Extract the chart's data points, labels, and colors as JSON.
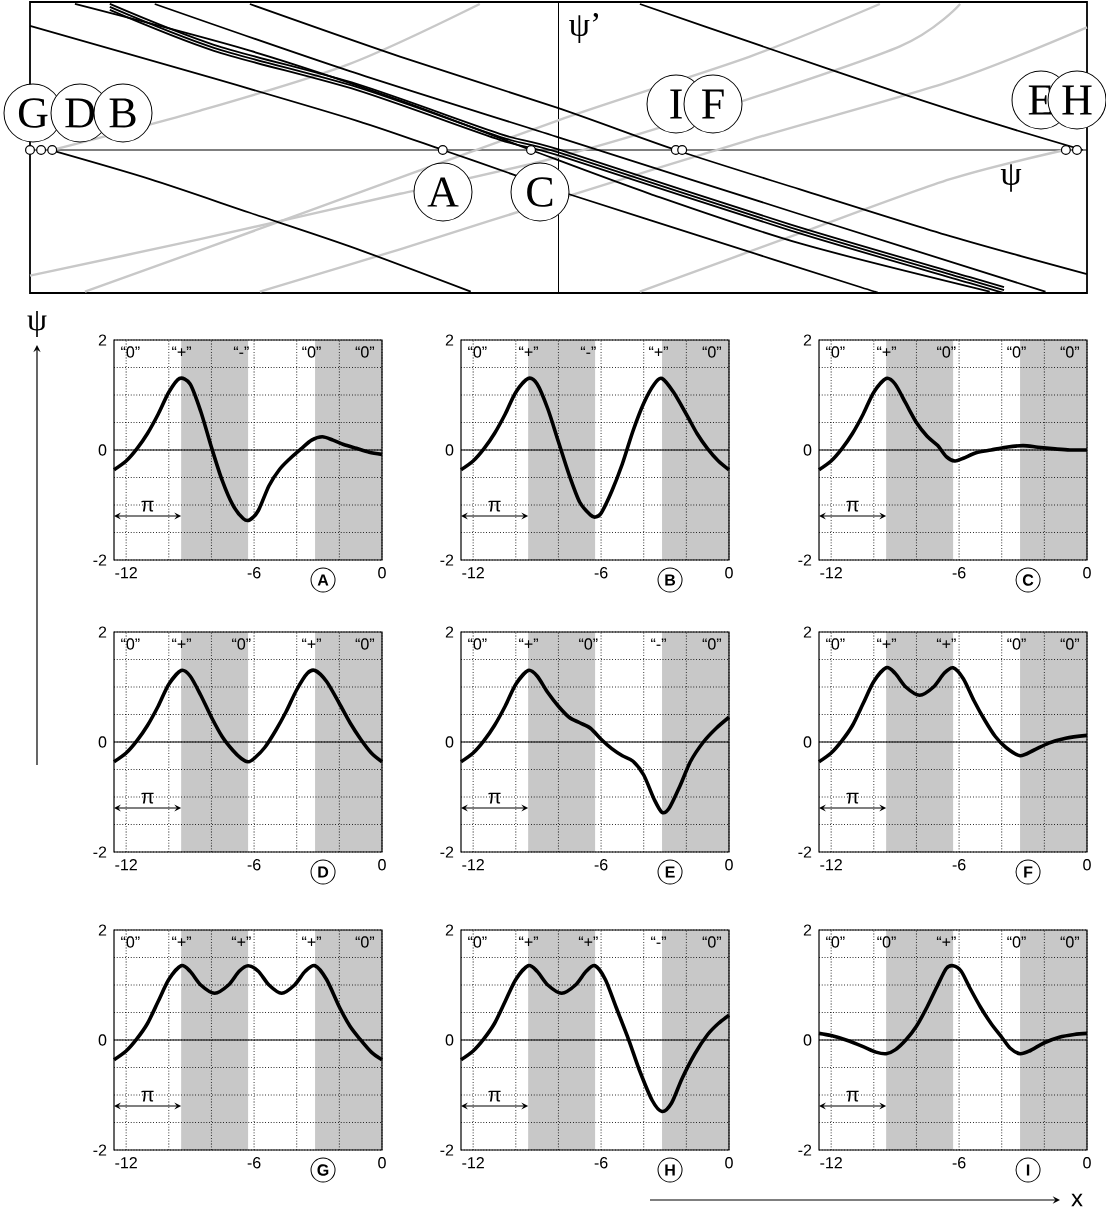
{
  "chart_data": [
    {
      "type": "other",
      "xlabel": "ψ",
      "ylabel": "ψ’",
      "annotations": [
        "G",
        "D",
        "B",
        "A",
        "C",
        "I",
        "F",
        "E",
        "H"
      ]
    },
    {
      "type": "line",
      "title": "A",
      "ylabel": "ψ",
      "xlim": [
        -12.57,
        0
      ],
      "ylim": [
        -2,
        2
      ],
      "grid": true,
      "xticks": [
        {
          "value": -12,
          "label": "-12"
        },
        {
          "value": -10,
          "label": null
        },
        {
          "value": -8,
          "label": null
        },
        {
          "value": -6,
          "label": "-6"
        },
        {
          "value": -4,
          "label": null
        },
        {
          "value": -2,
          "label": null
        },
        {
          "value": 0,
          "label": "0"
        }
      ],
      "yticks": [
        {
          "value": -2,
          "label": "-2"
        },
        {
          "value": -1.5,
          "label": null
        },
        {
          "value": -1,
          "label": null
        },
        {
          "value": -0.5,
          "label": null
        },
        {
          "value": 0,
          "label": "0"
        },
        {
          "value": 0.5,
          "label": null
        },
        {
          "value": 1,
          "label": null
        },
        {
          "value": 1.5,
          "label": null
        },
        {
          "value": 2,
          "label": "2"
        }
      ],
      "ref_lines": [
        {
          "axis": "y",
          "value": 0
        }
      ],
      "bands": [
        {
          "axis": "x",
          "from": -9.42,
          "to": -6.28,
          "color": "#c8c8c8"
        },
        {
          "axis": "x",
          "from": -3.14,
          "to": 0,
          "color": "#c8c8c8"
        }
      ],
      "color": "#000000",
      "x": [
        -12.57,
        -12,
        -11.5,
        -11,
        -10.5,
        -10,
        -9.5,
        -9,
        -8.5,
        -8,
        -7.5,
        -7,
        -6.5,
        -6.2,
        -5.8,
        -5.3,
        -4.8,
        -4.3,
        -3.8,
        -3.3,
        -2.8,
        -2.3,
        -1.8,
        -1.2,
        -0.6,
        0
      ],
      "values": [
        -0.36,
        -0.2,
        0.02,
        0.3,
        0.65,
        1.05,
        1.3,
        1.2,
        0.7,
        0.05,
        -0.55,
        -1.0,
        -1.25,
        -1.27,
        -1.1,
        -0.65,
        -0.35,
        -0.15,
        0.02,
        0.18,
        0.24,
        0.18,
        0.1,
        0.03,
        -0.04,
        -0.08
      ],
      "annotations": [
        "“0”",
        "“+”",
        "“-”",
        "“0”",
        "“0”",
        "π"
      ]
    },
    {
      "type": "line",
      "title": "B",
      "xlim": [
        -12.57,
        0
      ],
      "ylim": [
        -2,
        2
      ],
      "grid": true,
      "xticks": [
        {
          "value": -12,
          "label": "-12"
        },
        {
          "value": -10,
          "label": null
        },
        {
          "value": -8,
          "label": null
        },
        {
          "value": -6,
          "label": "-6"
        },
        {
          "value": -4,
          "label": null
        },
        {
          "value": -2,
          "label": null
        },
        {
          "value": 0,
          "label": "0"
        }
      ],
      "yticks": [
        {
          "value": -2,
          "label": "-2"
        },
        {
          "value": -1.5,
          "label": null
        },
        {
          "value": -1,
          "label": null
        },
        {
          "value": -0.5,
          "label": null
        },
        {
          "value": 0,
          "label": "0"
        },
        {
          "value": 0.5,
          "label": null
        },
        {
          "value": 1,
          "label": null
        },
        {
          "value": 1.5,
          "label": null
        },
        {
          "value": 2,
          "label": "2"
        }
      ],
      "ref_lines": [
        {
          "axis": "y",
          "value": 0
        }
      ],
      "bands": [
        {
          "axis": "x",
          "from": -9.42,
          "to": -6.28,
          "color": "#c8c8c8"
        },
        {
          "axis": "x",
          "from": -3.14,
          "to": 0,
          "color": "#c8c8c8"
        }
      ],
      "color": "#000000",
      "x": [
        -12.57,
        -12,
        -11.5,
        -11,
        -10.5,
        -10,
        -9.42,
        -9,
        -8.5,
        -8,
        -7.5,
        -7,
        -6.5,
        -6.28,
        -6,
        -5.5,
        -5,
        -4.5,
        -4,
        -3.5,
        -3.14,
        -2.6,
        -2,
        -1.5,
        -1,
        -0.5,
        0
      ],
      "values": [
        -0.36,
        -0.2,
        0.02,
        0.3,
        0.65,
        1.05,
        1.3,
        1.2,
        0.75,
        0.15,
        -0.45,
        -0.95,
        -1.18,
        -1.22,
        -1.15,
        -0.75,
        -0.25,
        0.35,
        0.85,
        1.2,
        1.3,
        1.05,
        0.65,
        0.3,
        0.02,
        -0.2,
        -0.36
      ],
      "annotations": [
        "“0”",
        "“+”",
        "“-”",
        "“+”",
        "“0”",
        "π"
      ]
    },
    {
      "type": "line",
      "title": "C",
      "xlim": [
        -12.57,
        0
      ],
      "ylim": [
        -2,
        2
      ],
      "grid": true,
      "xticks": [
        {
          "value": -12,
          "label": "-12"
        },
        {
          "value": -10,
          "label": null
        },
        {
          "value": -8,
          "label": null
        },
        {
          "value": -6,
          "label": "-6"
        },
        {
          "value": -4,
          "label": null
        },
        {
          "value": -2,
          "label": null
        },
        {
          "value": 0,
          "label": "0"
        }
      ],
      "yticks": [
        {
          "value": -2,
          "label": "-2"
        },
        {
          "value": -1.5,
          "label": null
        },
        {
          "value": -1,
          "label": null
        },
        {
          "value": -0.5,
          "label": null
        },
        {
          "value": 0,
          "label": "0"
        },
        {
          "value": 0.5,
          "label": null
        },
        {
          "value": 1,
          "label": null
        },
        {
          "value": 1.5,
          "label": null
        },
        {
          "value": 2,
          "label": "2"
        }
      ],
      "ref_lines": [
        {
          "axis": "y",
          "value": 0
        }
      ],
      "bands": [
        {
          "axis": "x",
          "from": -9.42,
          "to": -6.28,
          "color": "#c8c8c8"
        },
        {
          "axis": "x",
          "from": -3.14,
          "to": 0,
          "color": "#c8c8c8"
        }
      ],
      "color": "#000000",
      "x": [
        -12.57,
        -12,
        -11.5,
        -11,
        -10.5,
        -10,
        -9.42,
        -9,
        -8.5,
        -8,
        -7.5,
        -7,
        -6.6,
        -6.2,
        -5.8,
        -5.2,
        -4.5,
        -3.8,
        -3,
        -2.3,
        -1.5,
        -0.8,
        0
      ],
      "values": [
        -0.36,
        -0.2,
        0.02,
        0.3,
        0.65,
        1.05,
        1.3,
        1.2,
        0.85,
        0.5,
        0.25,
        0.08,
        -0.12,
        -0.2,
        -0.15,
        -0.05,
        0.0,
        0.05,
        0.08,
        0.05,
        0.02,
        0.0,
        0.0
      ],
      "annotations": [
        "“0”",
        "“+”",
        "“0”",
        "“0”",
        "“0”",
        "π"
      ]
    },
    {
      "type": "line",
      "title": "D",
      "xlim": [
        -12.57,
        0
      ],
      "ylim": [
        -2,
        2
      ],
      "grid": true,
      "xticks": [
        {
          "value": -12,
          "label": "-12"
        },
        {
          "value": -10,
          "label": null
        },
        {
          "value": -8,
          "label": null
        },
        {
          "value": -6,
          "label": "-6"
        },
        {
          "value": -4,
          "label": null
        },
        {
          "value": -2,
          "label": null
        },
        {
          "value": 0,
          "label": "0"
        }
      ],
      "yticks": [
        {
          "value": -2,
          "label": "-2"
        },
        {
          "value": -1.5,
          "label": null
        },
        {
          "value": -1,
          "label": null
        },
        {
          "value": -0.5,
          "label": null
        },
        {
          "value": 0,
          "label": "0"
        },
        {
          "value": 0.5,
          "label": null
        },
        {
          "value": 1,
          "label": null
        },
        {
          "value": 1.5,
          "label": null
        },
        {
          "value": 2,
          "label": "2"
        }
      ],
      "ref_lines": [
        {
          "axis": "y",
          "value": 0
        }
      ],
      "bands": [
        {
          "axis": "x",
          "from": -9.42,
          "to": -6.28,
          "color": "#c8c8c8"
        },
        {
          "axis": "x",
          "from": -3.14,
          "to": 0,
          "color": "#c8c8c8"
        }
      ],
      "color": "#000000",
      "x": [
        -12.57,
        -12,
        -11.5,
        -11,
        -10.5,
        -10,
        -9.42,
        -9,
        -8.5,
        -8,
        -7.5,
        -7,
        -6.6,
        -6.28,
        -6,
        -5.5,
        -5,
        -4.5,
        -4,
        -3.5,
        -3.14,
        -2.6,
        -2,
        -1.5,
        -1,
        -0.5,
        0
      ],
      "values": [
        -0.36,
        -0.2,
        0.02,
        0.3,
        0.65,
        1.05,
        1.3,
        1.2,
        0.85,
        0.45,
        0.1,
        -0.15,
        -0.3,
        -0.36,
        -0.3,
        -0.1,
        0.2,
        0.55,
        0.95,
        1.25,
        1.3,
        1.1,
        0.7,
        0.35,
        0.05,
        -0.2,
        -0.36
      ],
      "annotations": [
        "“0”",
        "“+”",
        "“0”",
        "“+”",
        "“0”",
        "π"
      ]
    },
    {
      "type": "line",
      "title": "E",
      "xlim": [
        -12.57,
        0
      ],
      "ylim": [
        -2,
        2
      ],
      "grid": true,
      "xticks": [
        {
          "value": -12,
          "label": "-12"
        },
        {
          "value": -10,
          "label": null
        },
        {
          "value": -8,
          "label": null
        },
        {
          "value": -6,
          "label": "-6"
        },
        {
          "value": -4,
          "label": null
        },
        {
          "value": -2,
          "label": null
        },
        {
          "value": 0,
          "label": "0"
        }
      ],
      "yticks": [
        {
          "value": -2,
          "label": "-2"
        },
        {
          "value": -1.5,
          "label": null
        },
        {
          "value": -1,
          "label": null
        },
        {
          "value": -0.5,
          "label": null
        },
        {
          "value": 0,
          "label": "0"
        },
        {
          "value": 0.5,
          "label": null
        },
        {
          "value": 1,
          "label": null
        },
        {
          "value": 1.5,
          "label": null
        },
        {
          "value": 2,
          "label": "2"
        }
      ],
      "ref_lines": [
        {
          "axis": "y",
          "value": 0
        }
      ],
      "bands": [
        {
          "axis": "x",
          "from": -9.42,
          "to": -6.28,
          "color": "#c8c8c8"
        },
        {
          "axis": "x",
          "from": -3.14,
          "to": 0,
          "color": "#c8c8c8"
        }
      ],
      "color": "#000000",
      "x": [
        -12.57,
        -12,
        -11.5,
        -11,
        -10.5,
        -10,
        -9.42,
        -9,
        -8.5,
        -8,
        -7.5,
        -7,
        -6.5,
        -6,
        -5.5,
        -5,
        -4.5,
        -4,
        -3.5,
        -3.14,
        -2.8,
        -2.3,
        -1.8,
        -1.2,
        -0.6,
        0
      ],
      "values": [
        -0.36,
        -0.2,
        0.02,
        0.3,
        0.65,
        1.05,
        1.3,
        1.2,
        0.9,
        0.65,
        0.45,
        0.35,
        0.25,
        0.05,
        -0.12,
        -0.25,
        -0.35,
        -0.6,
        -1.05,
        -1.28,
        -1.2,
        -0.8,
        -0.35,
        0.0,
        0.25,
        0.45
      ],
      "annotations": [
        "“0”",
        "“+”",
        "“0”",
        "“-”",
        "“0”",
        "π"
      ]
    },
    {
      "type": "line",
      "title": "F",
      "xlim": [
        -12.57,
        0
      ],
      "ylim": [
        -2,
        2
      ],
      "grid": true,
      "xticks": [
        {
          "value": -12,
          "label": "-12"
        },
        {
          "value": -10,
          "label": null
        },
        {
          "value": -8,
          "label": null
        },
        {
          "value": -6,
          "label": "-6"
        },
        {
          "value": -4,
          "label": null
        },
        {
          "value": -2,
          "label": null
        },
        {
          "value": 0,
          "label": "0"
        }
      ],
      "yticks": [
        {
          "value": -2,
          "label": "-2"
        },
        {
          "value": -1.5,
          "label": null
        },
        {
          "value": -1,
          "label": null
        },
        {
          "value": -0.5,
          "label": null
        },
        {
          "value": 0,
          "label": "0"
        },
        {
          "value": 0.5,
          "label": null
        },
        {
          "value": 1,
          "label": null
        },
        {
          "value": 1.5,
          "label": null
        },
        {
          "value": 2,
          "label": "2"
        }
      ],
      "ref_lines": [
        {
          "axis": "y",
          "value": 0
        }
      ],
      "bands": [
        {
          "axis": "x",
          "from": -9.42,
          "to": -6.28,
          "color": "#c8c8c8"
        },
        {
          "axis": "x",
          "from": -3.14,
          "to": 0,
          "color": "#c8c8c8"
        }
      ],
      "color": "#000000",
      "x": [
        -12.57,
        -12,
        -11.5,
        -11,
        -10.5,
        -10,
        -9.42,
        -9,
        -8.5,
        -7.85,
        -7.2,
        -6.7,
        -6.28,
        -5.8,
        -5.3,
        -4.8,
        -4.3,
        -3.8,
        -3.14,
        -2.5,
        -1.8,
        -1,
        0
      ],
      "values": [
        -0.36,
        -0.2,
        0.02,
        0.3,
        0.7,
        1.1,
        1.35,
        1.25,
        1.0,
        0.85,
        1.0,
        1.25,
        1.35,
        1.15,
        0.75,
        0.4,
        0.1,
        -0.1,
        -0.25,
        -0.15,
        -0.02,
        0.07,
        0.12
      ],
      "annotations": [
        "“0”",
        "“+”",
        "“+”",
        "“0”",
        "“0”",
        "π"
      ]
    },
    {
      "type": "line",
      "title": "G",
      "xlim": [
        -12.57,
        0
      ],
      "ylim": [
        -2,
        2
      ],
      "grid": true,
      "xticks": [
        {
          "value": -12,
          "label": "-12"
        },
        {
          "value": -10,
          "label": null
        },
        {
          "value": -8,
          "label": null
        },
        {
          "value": -6,
          "label": "-6"
        },
        {
          "value": -4,
          "label": null
        },
        {
          "value": -2,
          "label": null
        },
        {
          "value": 0,
          "label": "0"
        }
      ],
      "yticks": [
        {
          "value": -2,
          "label": "-2"
        },
        {
          "value": -1.5,
          "label": null
        },
        {
          "value": -1,
          "label": null
        },
        {
          "value": -0.5,
          "label": null
        },
        {
          "value": 0,
          "label": "0"
        },
        {
          "value": 0.5,
          "label": null
        },
        {
          "value": 1,
          "label": null
        },
        {
          "value": 1.5,
          "label": null
        },
        {
          "value": 2,
          "label": "2"
        }
      ],
      "ref_lines": [
        {
          "axis": "y",
          "value": 0
        }
      ],
      "bands": [
        {
          "axis": "x",
          "from": -9.42,
          "to": -6.28,
          "color": "#c8c8c8"
        },
        {
          "axis": "x",
          "from": -3.14,
          "to": 0,
          "color": "#c8c8c8"
        }
      ],
      "color": "#000000",
      "x": [
        -12.57,
        -12,
        -11.5,
        -11,
        -10.5,
        -10,
        -9.42,
        -9,
        -8.5,
        -7.85,
        -7.2,
        -6.7,
        -6.28,
        -5.8,
        -5.3,
        -4.71,
        -4.1,
        -3.6,
        -3.14,
        -2.6,
        -2,
        -1.5,
        -1,
        -0.5,
        0
      ],
      "values": [
        -0.36,
        -0.2,
        0.02,
        0.3,
        0.7,
        1.1,
        1.35,
        1.25,
        1.0,
        0.85,
        1.0,
        1.25,
        1.35,
        1.25,
        1.0,
        0.85,
        1.0,
        1.25,
        1.35,
        1.1,
        0.6,
        0.25,
        0.0,
        -0.22,
        -0.36
      ],
      "annotations": [
        "“0”",
        "“+”",
        "“+”",
        "“+”",
        "“0”",
        "π"
      ]
    },
    {
      "type": "line",
      "title": "H",
      "xlim": [
        -12.57,
        0
      ],
      "ylim": [
        -2,
        2
      ],
      "grid": true,
      "xticks": [
        {
          "value": -12,
          "label": "-12"
        },
        {
          "value": -10,
          "label": null
        },
        {
          "value": -8,
          "label": null
        },
        {
          "value": -6,
          "label": "-6"
        },
        {
          "value": -4,
          "label": null
        },
        {
          "value": -2,
          "label": null
        },
        {
          "value": 0,
          "label": "0"
        }
      ],
      "yticks": [
        {
          "value": -2,
          "label": "-2"
        },
        {
          "value": -1.5,
          "label": null
        },
        {
          "value": -1,
          "label": null
        },
        {
          "value": -0.5,
          "label": null
        },
        {
          "value": 0,
          "label": "0"
        },
        {
          "value": 0.5,
          "label": null
        },
        {
          "value": 1,
          "label": null
        },
        {
          "value": 1.5,
          "label": null
        },
        {
          "value": 2,
          "label": "2"
        }
      ],
      "ref_lines": [
        {
          "axis": "y",
          "value": 0
        }
      ],
      "bands": [
        {
          "axis": "x",
          "from": -9.42,
          "to": -6.28,
          "color": "#c8c8c8"
        },
        {
          "axis": "x",
          "from": -3.14,
          "to": 0,
          "color": "#c8c8c8"
        }
      ],
      "color": "#000000",
      "x": [
        -12.57,
        -12,
        -11.5,
        -11,
        -10.5,
        -10,
        -9.42,
        -9,
        -8.5,
        -7.85,
        -7.2,
        -6.7,
        -6.28,
        -5.8,
        -5.3,
        -4.7,
        -4.2,
        -3.6,
        -3.14,
        -2.7,
        -2.2,
        -1.6,
        -1,
        -0.5,
        0
      ],
      "values": [
        -0.36,
        -0.2,
        0.02,
        0.3,
        0.7,
        1.1,
        1.35,
        1.25,
        1.0,
        0.85,
        1.0,
        1.25,
        1.35,
        1.1,
        0.6,
        0.0,
        -0.55,
        -1.1,
        -1.3,
        -1.15,
        -0.7,
        -0.25,
        0.1,
        0.3,
        0.45
      ],
      "annotations": [
        "“0”",
        "“+”",
        "“+”",
        "“-”",
        "“0”",
        "π"
      ]
    },
    {
      "type": "line",
      "title": "I",
      "xlabel": "x",
      "xlim": [
        -12.57,
        0
      ],
      "ylim": [
        -2,
        2
      ],
      "grid": true,
      "xticks": [
        {
          "value": -12,
          "label": "-12"
        },
        {
          "value": -10,
          "label": null
        },
        {
          "value": -8,
          "label": null
        },
        {
          "value": -6,
          "label": "-6"
        },
        {
          "value": -4,
          "label": null
        },
        {
          "value": -2,
          "label": null
        },
        {
          "value": 0,
          "label": "0"
        }
      ],
      "yticks": [
        {
          "value": -2,
          "label": "-2"
        },
        {
          "value": -1.5,
          "label": null
        },
        {
          "value": -1,
          "label": null
        },
        {
          "value": -0.5,
          "label": null
        },
        {
          "value": 0,
          "label": "0"
        },
        {
          "value": 0.5,
          "label": null
        },
        {
          "value": 1,
          "label": null
        },
        {
          "value": 1.5,
          "label": null
        },
        {
          "value": 2,
          "label": "2"
        }
      ],
      "ref_lines": [
        {
          "axis": "y",
          "value": 0
        }
      ],
      "bands": [
        {
          "axis": "x",
          "from": -9.42,
          "to": -6.28,
          "color": "#c8c8c8"
        },
        {
          "axis": "x",
          "from": -3.14,
          "to": 0,
          "color": "#c8c8c8"
        }
      ],
      "color": "#000000",
      "x": [
        -12.57,
        -12,
        -11.3,
        -10.5,
        -9.9,
        -9.42,
        -9,
        -8.5,
        -8,
        -7.5,
        -7,
        -6.6,
        -6.28,
        -5.9,
        -5.5,
        -5,
        -4.5,
        -4,
        -3.6,
        -3.14,
        -2.7,
        -2,
        -1.3,
        -0.6,
        0
      ],
      "values": [
        0.12,
        0.08,
        0.0,
        -0.12,
        -0.22,
        -0.25,
        -0.18,
        0.0,
        0.25,
        0.6,
        1.0,
        1.3,
        1.35,
        1.25,
        0.95,
        0.6,
        0.3,
        0.05,
        -0.15,
        -0.25,
        -0.2,
        -0.05,
        0.05,
        0.1,
        0.12
      ],
      "annotations": [
        "“0”",
        "“0”",
        "“+”",
        "“0”",
        "“0”",
        "π"
      ]
    }
  ]
}
